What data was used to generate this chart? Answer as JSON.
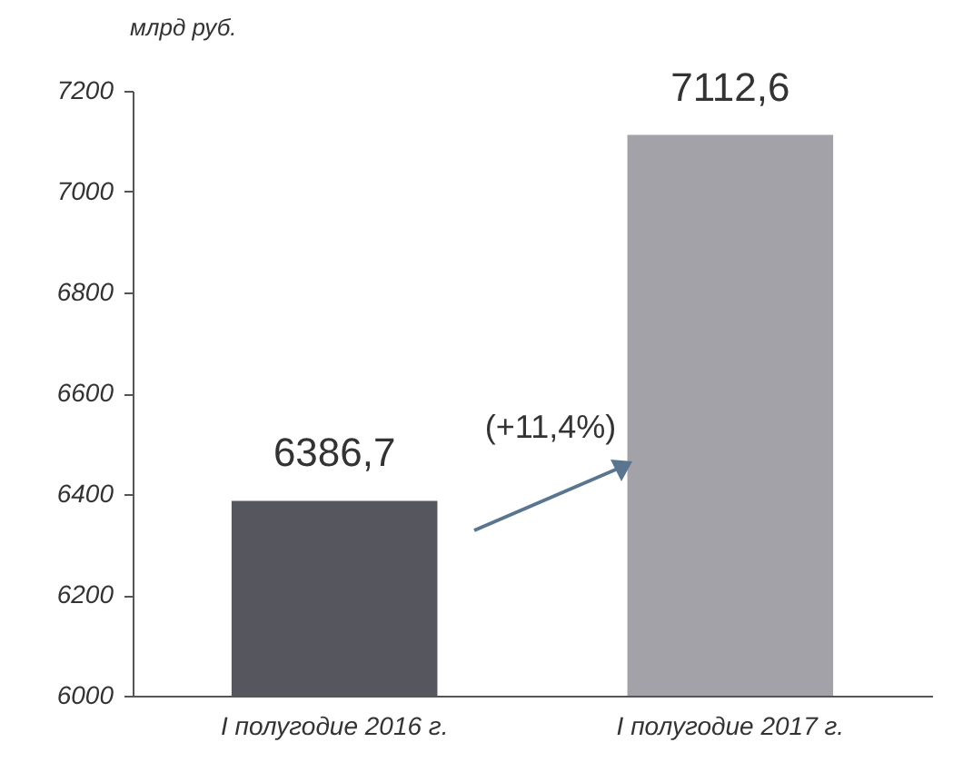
{
  "chart_data": {
    "type": "bar",
    "ylabel": "млрд руб.",
    "categories": [
      "I полугодие 2016 г.",
      "I полугодие 2017 г."
    ],
    "values": [
      6386.7,
      7112.6
    ],
    "colors": [
      "#56565e",
      "#a2a2a8"
    ],
    "value_labels": [
      "6386,7",
      "7112,6"
    ],
    "ylim": [
      6000,
      7200
    ],
    "yticks": [
      6000,
      6200,
      6400,
      6600,
      6800,
      7000,
      7200
    ],
    "annotations": [
      "(+11,4%)"
    ]
  }
}
